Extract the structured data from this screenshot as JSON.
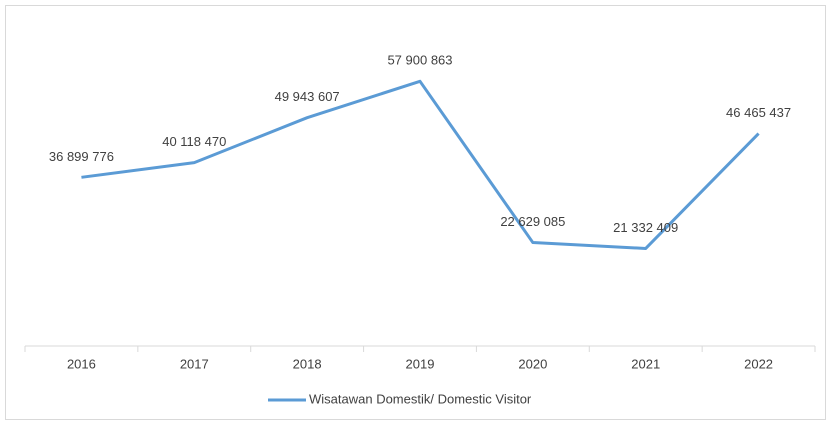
{
  "chart_data": {
    "type": "line",
    "categories": [
      "2016",
      "2017",
      "2018",
      "2019",
      "2020",
      "2021",
      "2022"
    ],
    "series": [
      {
        "name": "Wisatawan Domestik/ Domestic Visitor",
        "color": "#5b9bd5",
        "values": [
          36899776,
          40118470,
          49943607,
          57900863,
          22629085,
          21332409,
          46465437
        ],
        "value_labels": [
          "36 899 776",
          "40 118 470",
          "49 943 607",
          "57 900 863",
          "22 629 085",
          "21 332 409",
          "46 465 437"
        ]
      }
    ],
    "ylim": [
      0,
      70000000
    ],
    "legend": "bottom"
  }
}
